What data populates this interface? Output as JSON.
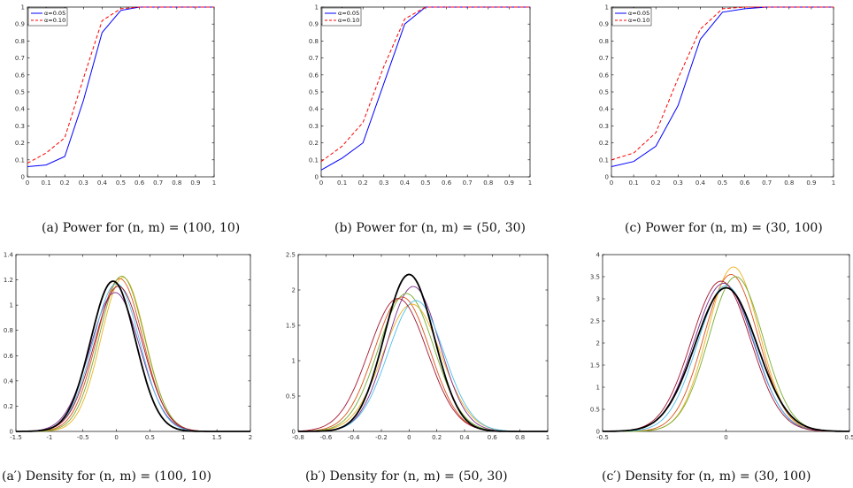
{
  "captions": [
    "(a) Power for (n, m) = (100, 10)",
    "(b) Power for (n, m) = (50, 30)",
    "(c) Power for (n, m) = (30, 100)",
    "(a′) Density for (n, m) = (100, 10)",
    "(b′) Density for (n, m) = (50, 30)",
    "(c′) Density for (n, m) = (30, 100)"
  ],
  "colors": {
    "alpha05": "#0000ff",
    "alpha10": "#ff0000",
    "density": [
      "#0072bd",
      "#d95319",
      "#edb120",
      "#7e2f8e",
      "#77ac30",
      "#4dbeee",
      "#a2142f",
      "#000000"
    ]
  },
  "chart_data": [
    {
      "type": "line",
      "title": "",
      "xlabel": "",
      "ylabel": "",
      "xlim": [
        0,
        1
      ],
      "ylim": [
        0,
        1
      ],
      "xticks": [
        "0",
        "0.1",
        "0.2",
        "0.3",
        "0.4",
        "0.5",
        "0.6",
        "0.7",
        "0.8",
        "0.9",
        "1"
      ],
      "yticks": [
        "0",
        "0.1",
        "0.2",
        "0.3",
        "0.4",
        "0.5",
        "0.6",
        "0.7",
        "0.8",
        "0.9",
        "1"
      ],
      "legend": "top-left",
      "x": [
        0,
        0.1,
        0.2,
        0.3,
        0.4,
        0.5,
        0.6,
        0.7,
        0.8,
        0.9,
        1
      ],
      "series": [
        {
          "name": "α=0.05",
          "style": "solid",
          "values": [
            0.06,
            0.07,
            0.12,
            0.45,
            0.85,
            0.98,
            1,
            1,
            1,
            1,
            1
          ]
        },
        {
          "name": "α=0.10",
          "style": "dashed",
          "values": [
            0.08,
            0.14,
            0.23,
            0.58,
            0.92,
            0.99,
            1,
            1,
            1,
            1,
            1
          ]
        }
      ]
    },
    {
      "type": "line",
      "title": "",
      "xlabel": "",
      "ylabel": "",
      "xlim": [
        0,
        1
      ],
      "ylim": [
        0,
        1
      ],
      "xticks": [
        "0",
        "0.1",
        "0.2",
        "0.3",
        "0.4",
        "0.5",
        "0.6",
        "0.7",
        "0.8",
        "0.9",
        "1"
      ],
      "yticks": [
        "0",
        "0.1",
        "0.2",
        "0.3",
        "0.4",
        "0.5",
        "0.6",
        "0.7",
        "0.8",
        "0.9",
        "1"
      ],
      "legend": "top-left",
      "x": [
        0,
        0.1,
        0.2,
        0.3,
        0.4,
        0.5,
        0.6,
        0.7,
        0.8,
        0.9,
        1
      ],
      "series": [
        {
          "name": "α=0.05",
          "style": "solid",
          "values": [
            0.04,
            0.11,
            0.2,
            0.55,
            0.9,
            1,
            1,
            1,
            1,
            1,
            1
          ]
        },
        {
          "name": "α=0.10",
          "style": "dashed",
          "values": [
            0.09,
            0.18,
            0.32,
            0.65,
            0.93,
            1,
            1,
            1,
            1,
            1,
            1
          ]
        }
      ]
    },
    {
      "type": "line",
      "title": "",
      "xlabel": "",
      "ylabel": "",
      "xlim": [
        0,
        1
      ],
      "ylim": [
        0,
        1
      ],
      "xticks": [
        "0",
        "0.1",
        "0.2",
        "0.3",
        "0.4",
        "0.5",
        "0.6",
        "0.7",
        "0.8",
        "0.9",
        "1"
      ],
      "yticks": [
        "0",
        "0.1",
        "0.2",
        "0.3",
        "0.4",
        "0.5",
        "0.6",
        "0.7",
        "0.8",
        "0.9",
        "1"
      ],
      "legend": "top-left",
      "x": [
        0,
        0.1,
        0.2,
        0.3,
        0.4,
        0.5,
        0.6,
        0.7,
        0.8,
        0.9,
        1
      ],
      "series": [
        {
          "name": "α=0.05",
          "style": "solid",
          "values": [
            0.06,
            0.09,
            0.18,
            0.42,
            0.81,
            0.97,
            0.99,
            1,
            1,
            1,
            1
          ]
        },
        {
          "name": "α=0.10",
          "style": "dashed",
          "values": [
            0.1,
            0.14,
            0.26,
            0.58,
            0.87,
            0.99,
            1,
            1,
            1,
            1,
            1
          ]
        }
      ]
    },
    {
      "type": "line",
      "title": "",
      "xlabel": "",
      "ylabel": "",
      "xlim": [
        -1.5,
        2
      ],
      "ylim": [
        0,
        1.4
      ],
      "xticks": [
        "-1.5",
        "-1",
        "-0.5",
        "0",
        "0.5",
        "1",
        "1.5",
        "2"
      ],
      "yticks": [
        "0",
        "0.2",
        "0.4",
        "0.6",
        "0.8",
        "1",
        "1.2",
        "1.4"
      ],
      "xtick_values": [
        -1.5,
        -1,
        -0.5,
        0,
        0.5,
        1,
        1.5,
        2
      ],
      "ytick_values": [
        0,
        0.2,
        0.4,
        0.6,
        0.8,
        1,
        1.2,
        1.4
      ],
      "curves": [
        {
          "mu": -0.05,
          "sigma": 0.335,
          "peak": 1.19,
          "bold": true
        },
        {
          "mu": 0.05,
          "sigma": 0.345,
          "peak": 1.21
        },
        {
          "mu": 0.1,
          "sigma": 0.33,
          "peak": 1.22
        },
        {
          "mu": -0.02,
          "sigma": 0.37,
          "peak": 1.1
        },
        {
          "mu": 0.08,
          "sigma": 0.34,
          "peak": 1.23
        },
        {
          "mu": 0.0,
          "sigma": 0.35,
          "peak": 1.17
        },
        {
          "mu": 0.03,
          "sigma": 0.36,
          "peak": 1.15
        }
      ]
    },
    {
      "type": "line",
      "title": "",
      "xlabel": "",
      "ylabel": "",
      "xlim": [
        -0.8,
        1
      ],
      "ylim": [
        0,
        2.5
      ],
      "xticks": [
        "-0.8",
        "-0.6",
        "-0.4",
        "-0.2",
        "0",
        "0.2",
        "0.4",
        "0.6",
        "0.8",
        "1"
      ],
      "yticks": [
        "0",
        "0.5",
        "1",
        "1.5",
        "2",
        "2.5"
      ],
      "xtick_values": [
        -0.8,
        -0.6,
        -0.4,
        -0.2,
        0,
        0.2,
        0.4,
        0.6,
        0.8,
        1
      ],
      "ytick_values": [
        0,
        0.5,
        1,
        1.5,
        2,
        2.5
      ],
      "curves": [
        {
          "mu": 0.0,
          "sigma": 0.18,
          "peak": 2.22,
          "bold": true
        },
        {
          "mu": -0.05,
          "sigma": 0.2,
          "peak": 1.9
        },
        {
          "mu": 0.02,
          "sigma": 0.21,
          "peak": 1.8
        },
        {
          "mu": 0.03,
          "sigma": 0.19,
          "peak": 2.05
        },
        {
          "mu": -0.02,
          "sigma": 0.2,
          "peak": 1.95
        },
        {
          "mu": 0.05,
          "sigma": 0.2,
          "peak": 1.85
        },
        {
          "mu": -0.08,
          "sigma": 0.21,
          "peak": 1.88
        }
      ]
    },
    {
      "type": "line",
      "title": "",
      "xlabel": "",
      "ylabel": "",
      "xlim": [
        -0.5,
        0.5
      ],
      "ylim": [
        0,
        4
      ],
      "xticks": [
        "-0.5",
        "0",
        "0.5"
      ],
      "yticks": [
        "0",
        "0.5",
        "1",
        "1.5",
        "2",
        "2.5",
        "3",
        "3.5",
        "4"
      ],
      "xtick_values": [
        -0.5,
        0,
        0.5
      ],
      "ytick_values": [
        0,
        0.5,
        1,
        1.5,
        2,
        2.5,
        3,
        3.5,
        4
      ],
      "curves": [
        {
          "mu": 0.0,
          "sigma": 0.125,
          "peak": 3.25,
          "bold": true
        },
        {
          "mu": 0.02,
          "sigma": 0.11,
          "peak": 3.55
        },
        {
          "mu": 0.03,
          "sigma": 0.105,
          "peak": 3.72
        },
        {
          "mu": -0.01,
          "sigma": 0.12,
          "peak": 3.35
        },
        {
          "mu": 0.04,
          "sigma": 0.11,
          "peak": 3.5
        },
        {
          "mu": 0.0,
          "sigma": 0.115,
          "peak": 3.3
        },
        {
          "mu": -0.02,
          "sigma": 0.12,
          "peak": 3.4
        }
      ]
    }
  ]
}
